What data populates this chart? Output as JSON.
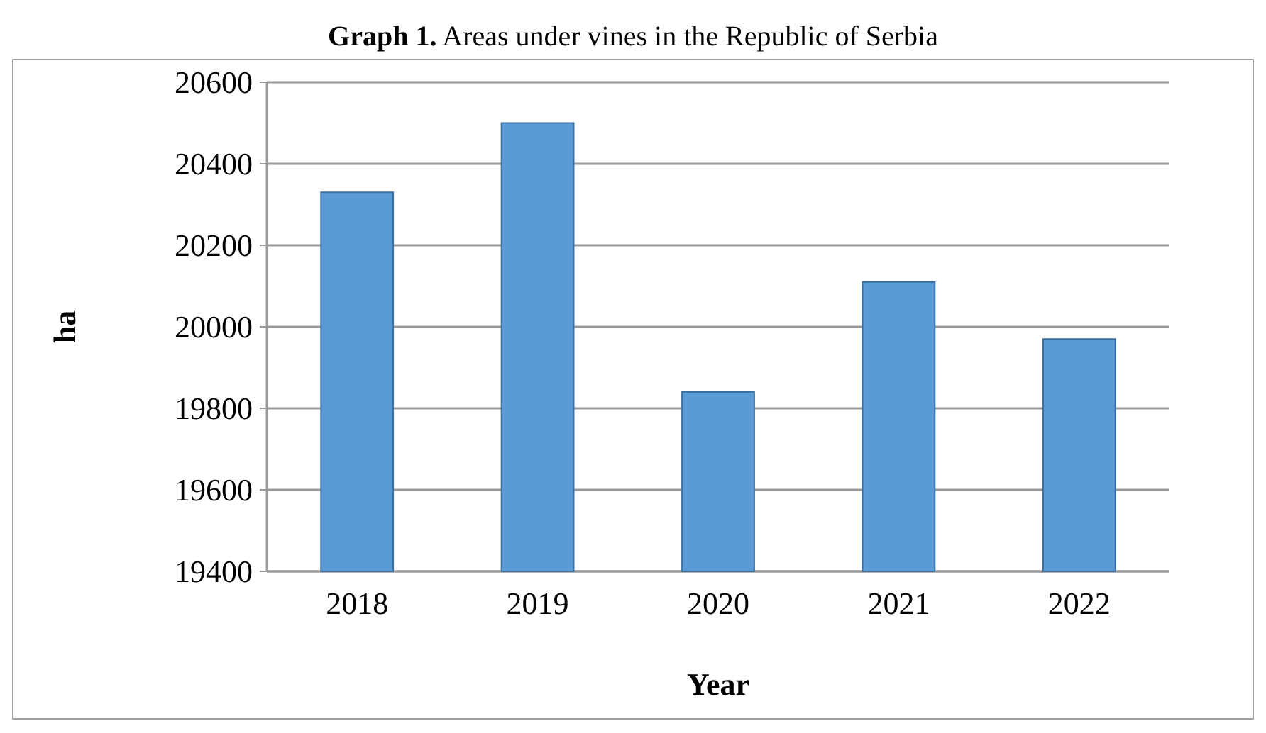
{
  "chart_data": {
    "type": "bar",
    "title": "Graph 1. Areas under vines in the Republic of Serbia",
    "categories": [
      "2018",
      "2019",
      "2020",
      "2021",
      "2022"
    ],
    "values": [
      20330,
      20500,
      19840,
      20110,
      19970
    ],
    "color": "#5b9bd5",
    "xlabel": "Year",
    "ylabel": "ha",
    "ylim": [
      19400,
      20600
    ],
    "yticks": [
      19400,
      19600,
      19800,
      20000,
      20200,
      20400,
      20600
    ],
    "grid": "y"
  }
}
